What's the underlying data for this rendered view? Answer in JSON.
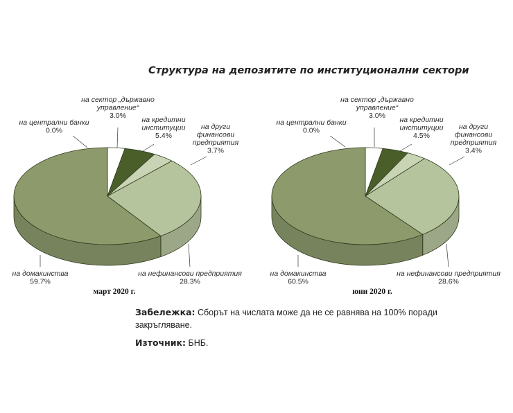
{
  "title": "Структура на депозитите по институционални сектори",
  "chart_data": [
    {
      "type": "pie",
      "period": "март 2020 г.",
      "slices": [
        {
          "key": "central_banks",
          "label_lines": [
            "на централни банки"
          ],
          "value_text": "0.0%",
          "value": 0.0,
          "color": "#ffffff"
        },
        {
          "key": "government",
          "label_lines": [
            "на сектор „държавно",
            "управление“"
          ],
          "value_text": "3.0%",
          "value": 3.0,
          "color": "#ffffff"
        },
        {
          "key": "credit_institutions",
          "label_lines": [
            "на кредитни",
            "институции"
          ],
          "value_text": "5.4%",
          "value": 5.4,
          "color": "#4a5e2a"
        },
        {
          "key": "other_financial",
          "label_lines": [
            "на други",
            "финансови",
            "предприятия"
          ],
          "value_text": "3.7%",
          "value": 3.7,
          "color": "#c8d4b4"
        },
        {
          "key": "non_financial",
          "label_lines": [
            "на нефинансови предприятия"
          ],
          "value_text": "28.3%",
          "value": 28.3,
          "color": "#b6c49e"
        },
        {
          "key": "households",
          "label_lines": [
            "на домакинства"
          ],
          "value_text": "59.7%",
          "value": 59.7,
          "color": "#8c9a6c"
        }
      ]
    },
    {
      "type": "pie",
      "period": "юни 2020 г.",
      "slices": [
        {
          "key": "central_banks",
          "label_lines": [
            "на централни банки"
          ],
          "value_text": "0.0%",
          "value": 0.0,
          "color": "#ffffff"
        },
        {
          "key": "government",
          "label_lines": [
            "на сектор „държавно",
            "управление“"
          ],
          "value_text": "3.0%",
          "value": 3.0,
          "color": "#ffffff"
        },
        {
          "key": "credit_institutions",
          "label_lines": [
            "на кредитни",
            "институции"
          ],
          "value_text": "4.5%",
          "value": 4.5,
          "color": "#4a5e2a"
        },
        {
          "key": "other_financial",
          "label_lines": [
            "на други",
            "финансови",
            "предприятия"
          ],
          "value_text": "3.4%",
          "value": 3.4,
          "color": "#c8d4b4"
        },
        {
          "key": "non_financial",
          "label_lines": [
            "на нефинансови предприятия"
          ],
          "value_text": "28.6%",
          "value": 28.6,
          "color": "#b6c49e"
        },
        {
          "key": "households",
          "label_lines": [
            "на домакинства"
          ],
          "value_text": "60.5%",
          "value": 60.5,
          "color": "#8c9a6c"
        }
      ]
    }
  ],
  "note": {
    "label": "Забележка:",
    "text": "Сборът на числата може да не се равнява на 100% поради закръгляване."
  },
  "source": {
    "label": "Източник:",
    "text": "БНБ."
  }
}
